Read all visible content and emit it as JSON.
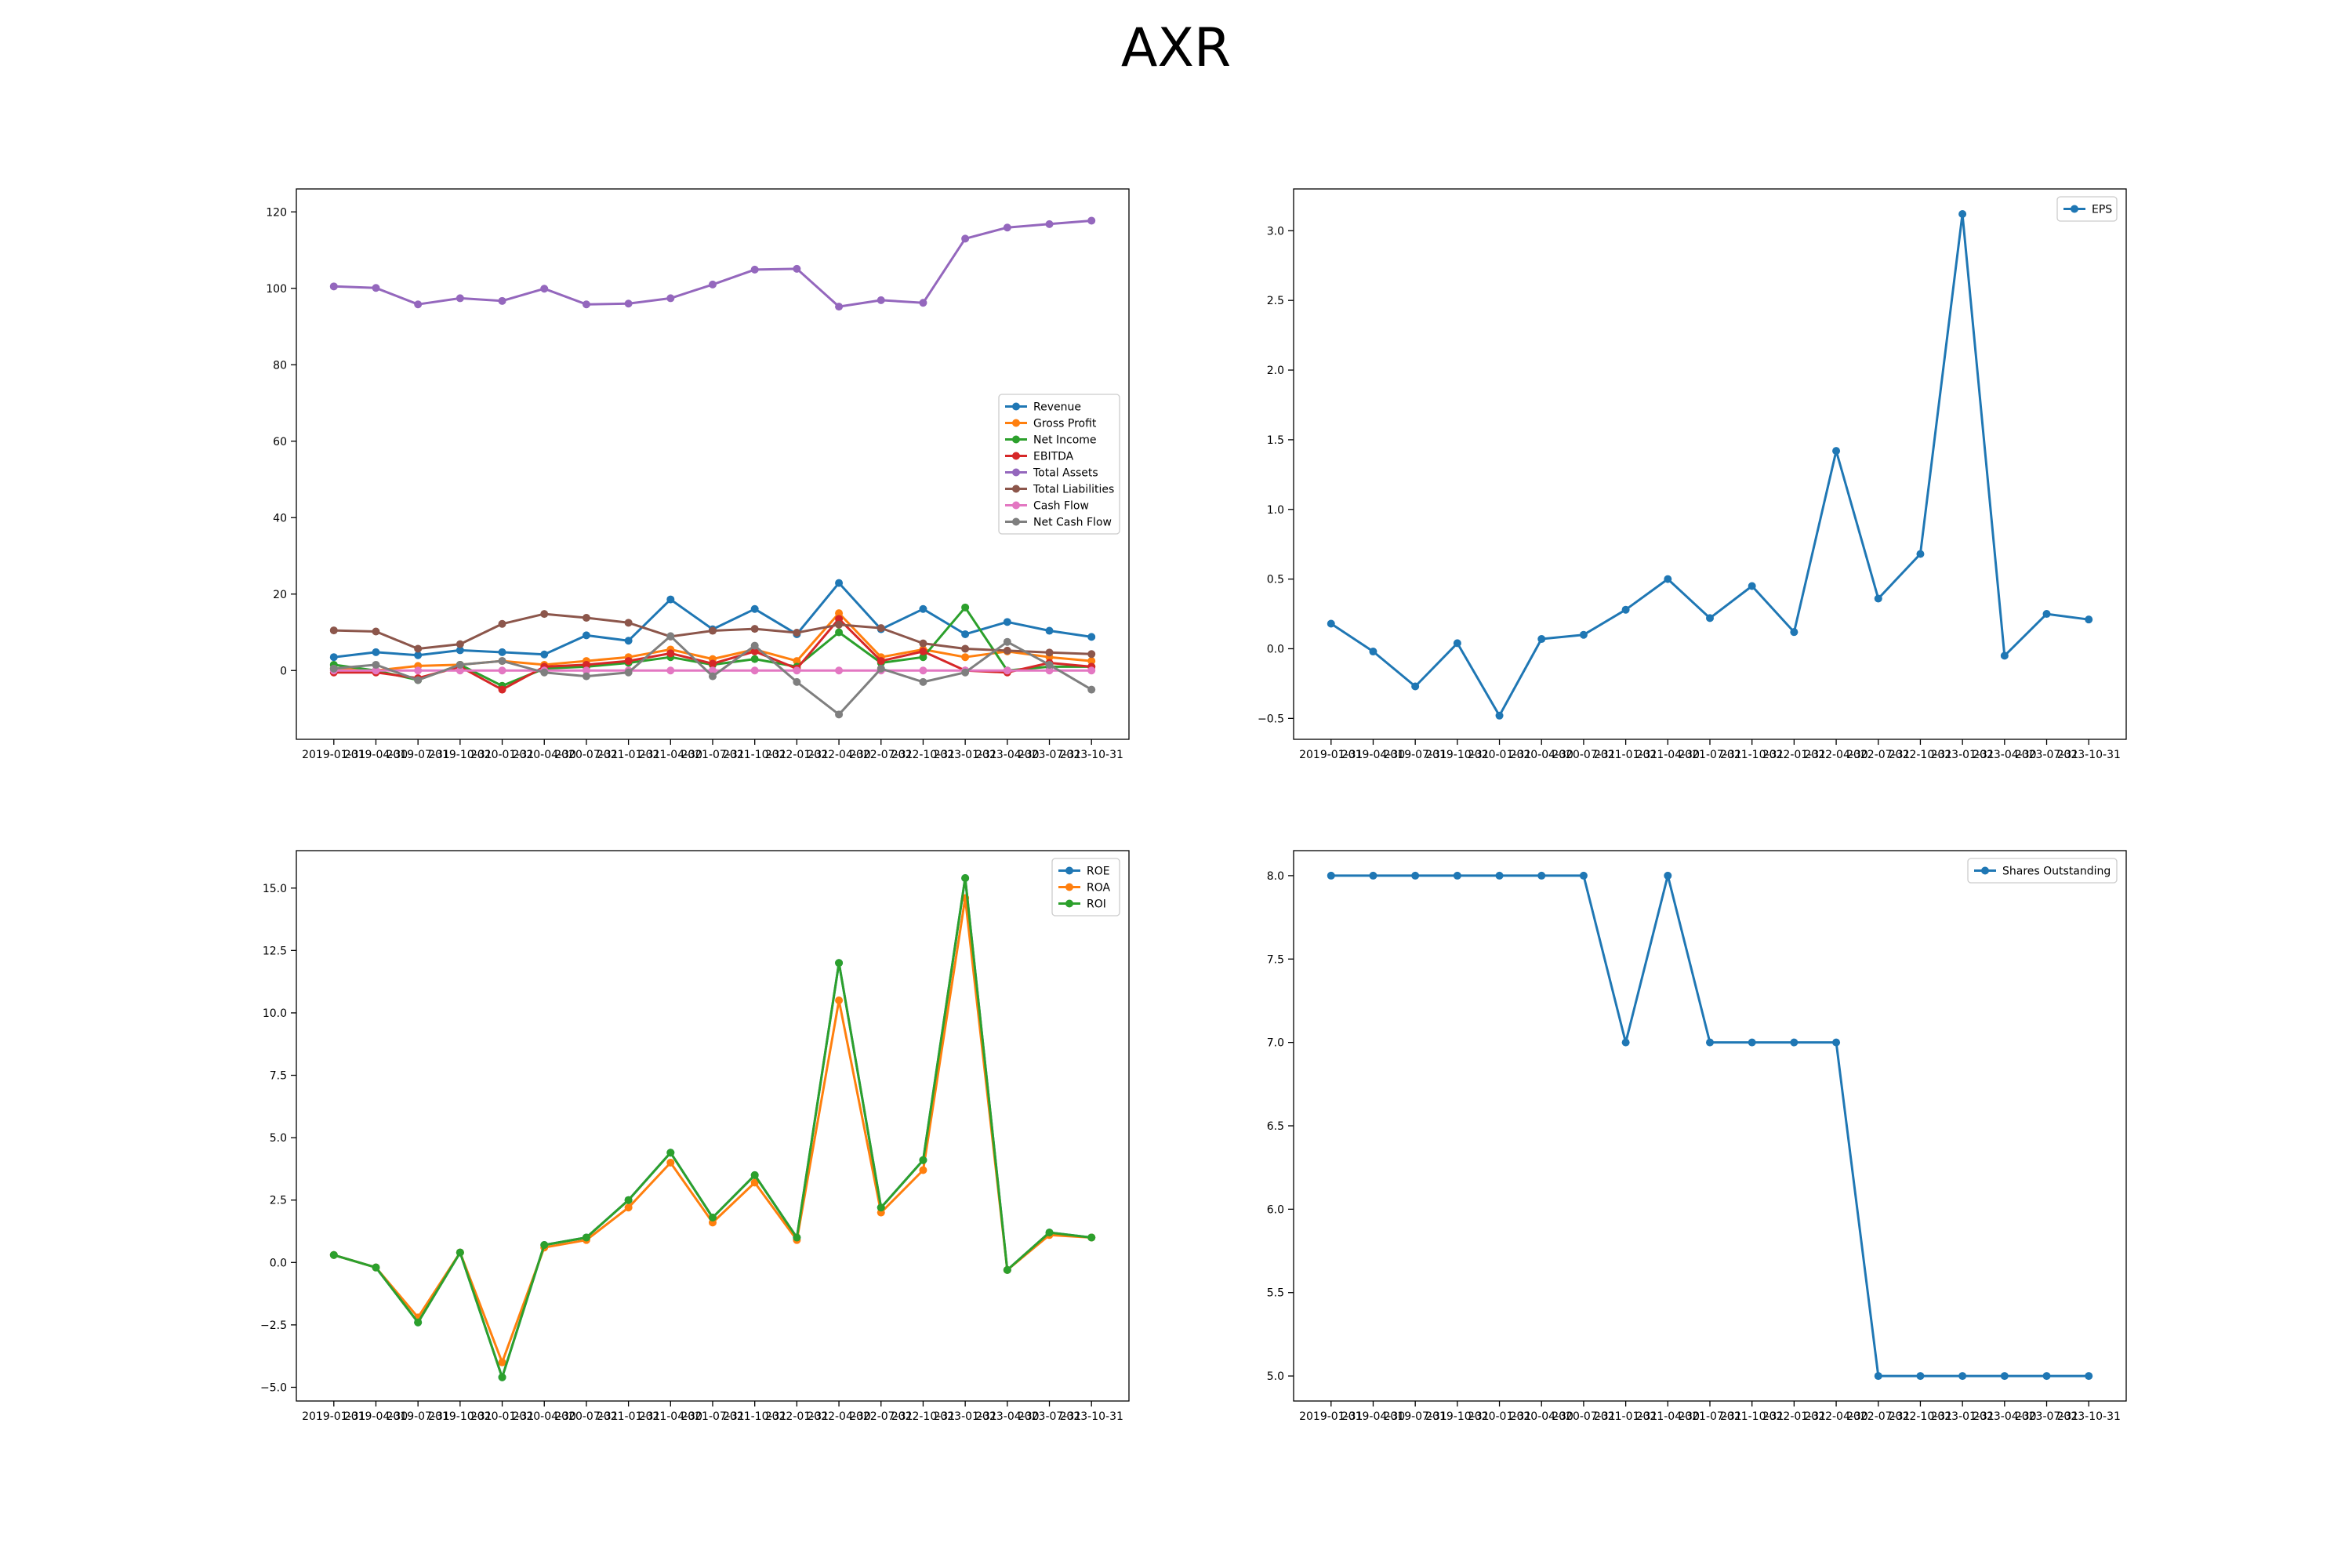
{
  "figure": {
    "title": "AXR"
  },
  "colors": {
    "Revenue": "#1f77b4",
    "Gross Profit": "#ff7f0e",
    "Net Income": "#2ca02c",
    "EBITDA": "#d62728",
    "Total Assets": "#9467bd",
    "Total Liabilities": "#8c564b",
    "Cash Flow": "#e377c2",
    "Net Cash Flow": "#7f7f7f",
    "EPS": "#1f77b4",
    "ROE": "#1f77b4",
    "ROA": "#ff7f0e",
    "ROI": "#2ca02c",
    "Shares Outstanding": "#1f77b4"
  },
  "chart_data": [
    {
      "type": "line",
      "title": "",
      "xlabel": "",
      "ylabel": "",
      "legend": "center-right",
      "categories": [
        "2019-01-31",
        "2019-04-30",
        "2019-07-31",
        "2019-10-31",
        "2020-01-31",
        "2020-04-30",
        "2020-07-31",
        "2021-01-31",
        "2021-04-30",
        "2021-07-31",
        "2021-10-31",
        "2022-01-31",
        "2022-04-30",
        "2022-07-31",
        "2022-10-31",
        "2023-01-31",
        "2023-04-30",
        "2023-07-31",
        "2023-10-31"
      ],
      "ylim": [
        -18,
        126
      ],
      "yticks": [
        0,
        20,
        40,
        60,
        80,
        100,
        120
      ],
      "series": [
        {
          "name": "Revenue",
          "values": [
            3.5,
            4.8,
            4.0,
            5.3,
            4.8,
            4.2,
            9.2,
            7.8,
            18.6,
            10.8,
            16.1,
            9.5,
            22.9,
            10.8,
            16.1,
            9.5,
            12.7,
            10.4,
            8.8
          ]
        },
        {
          "name": "Gross Profit",
          "values": [
            0.5,
            0.0,
            1.2,
            1.5,
            2.5,
            1.5,
            2.5,
            3.5,
            5.5,
            3.0,
            5.5,
            2.5,
            15.0,
            3.5,
            5.5,
            3.5,
            5.0,
            3.5,
            2.5
          ]
        },
        {
          "name": "Net Income",
          "values": [
            1.5,
            0.0,
            -2.5,
            1.5,
            -4.0,
            0.5,
            1.0,
            2.0,
            3.5,
            1.5,
            3.0,
            1.0,
            10.0,
            2.0,
            3.5,
            16.5,
            0.0,
            1.0,
            1.0
          ]
        },
        {
          "name": "EBITDA",
          "values": [
            -0.5,
            -0.5,
            -2.0,
            1.0,
            -5.0,
            1.0,
            1.5,
            2.5,
            4.5,
            1.8,
            5.0,
            0.5,
            13.5,
            2.5,
            5.0,
            0.0,
            -0.5,
            2.0,
            1.0
          ]
        },
        {
          "name": "Total Assets",
          "values": [
            100.5,
            100.1,
            95.8,
            97.4,
            96.7,
            99.9,
            95.8,
            96.0,
            97.4,
            101.0,
            104.9,
            105.1,
            95.2,
            96.9,
            96.2,
            113.0,
            115.9,
            116.8,
            117.7
          ]
        },
        {
          "name": "Total Liabilities",
          "values": [
            10.5,
            10.2,
            5.7,
            6.9,
            12.2,
            14.8,
            13.8,
            12.5,
            8.9,
            10.4,
            10.9,
            9.9,
            12.0,
            11.1,
            7.1,
            5.7,
            5.2,
            4.7,
            4.3
          ]
        },
        {
          "name": "Cash Flow",
          "values": [
            0.0,
            0.0,
            0.0,
            0.0,
            0.0,
            0.0,
            0.0,
            0.0,
            0.0,
            0.0,
            0.0,
            0.0,
            0.0,
            0.0,
            0.0,
            0.0,
            0.0,
            0.0,
            0.0
          ]
        },
        {
          "name": "Net Cash Flow",
          "values": [
            0.5,
            1.5,
            -2.5,
            1.5,
            2.5,
            -0.5,
            -1.5,
            -0.5,
            9.0,
            -1.5,
            6.5,
            -3.0,
            -11.5,
            0.5,
            -3.0,
            -0.5,
            7.5,
            1.5,
            -5.0
          ]
        }
      ]
    },
    {
      "type": "line",
      "title": "",
      "xlabel": "",
      "ylabel": "",
      "legend": "top-right",
      "categories": [
        "2019-01-31",
        "2019-04-30",
        "2019-07-31",
        "2019-10-31",
        "2020-01-31",
        "2020-04-30",
        "2020-07-31",
        "2021-01-31",
        "2021-04-30",
        "2021-07-31",
        "2021-10-31",
        "2022-01-31",
        "2022-04-30",
        "2022-07-31",
        "2022-10-31",
        "2023-01-31",
        "2023-04-30",
        "2023-07-31",
        "2023-10-31"
      ],
      "ylim": [
        -0.65,
        3.3
      ],
      "yticks": [
        -0.5,
        0.0,
        0.5,
        1.0,
        1.5,
        2.0,
        2.5,
        3.0
      ],
      "series": [
        {
          "name": "EPS",
          "values": [
            0.18,
            -0.02,
            -0.27,
            0.04,
            -0.48,
            0.07,
            0.1,
            0.28,
            0.5,
            0.22,
            0.45,
            0.12,
            1.42,
            0.36,
            0.68,
            3.12,
            -0.05,
            0.25,
            0.21
          ]
        }
      ]
    },
    {
      "type": "line",
      "title": "",
      "xlabel": "",
      "ylabel": "",
      "legend": "top-right",
      "categories": [
        "2019-01-31",
        "2019-04-30",
        "2019-07-31",
        "2019-10-31",
        "2020-01-31",
        "2020-04-30",
        "2020-07-31",
        "2021-01-31",
        "2021-04-30",
        "2021-07-31",
        "2021-10-31",
        "2022-01-31",
        "2022-04-30",
        "2022-07-31",
        "2022-10-31",
        "2023-01-31",
        "2023-04-30",
        "2023-07-31",
        "2023-10-31"
      ],
      "ylim": [
        -5.55,
        16.5
      ],
      "yticks": [
        -5.0,
        -2.5,
        0.0,
        2.5,
        5.0,
        7.5,
        10.0,
        12.5,
        15.0
      ],
      "series": [
        {
          "name": "ROE",
          "values": [
            0.3,
            -0.2,
            -2.4,
            0.4,
            -4.6,
            0.7,
            1.0,
            2.5,
            4.4,
            1.8,
            3.5,
            1.0,
            12.0,
            2.2,
            4.1,
            15.4,
            -0.3,
            1.2,
            1.0
          ]
        },
        {
          "name": "ROA",
          "values": [
            0.3,
            -0.2,
            -2.2,
            0.4,
            -4.0,
            0.6,
            0.9,
            2.2,
            4.0,
            1.6,
            3.2,
            0.9,
            10.5,
            2.0,
            3.7,
            14.6,
            -0.3,
            1.1,
            1.0
          ]
        },
        {
          "name": "ROI",
          "values": [
            0.3,
            -0.2,
            -2.4,
            0.4,
            -4.6,
            0.7,
            1.0,
            2.5,
            4.4,
            1.8,
            3.5,
            1.0,
            12.0,
            2.2,
            4.1,
            15.4,
            -0.3,
            1.2,
            1.0
          ]
        }
      ]
    },
    {
      "type": "line",
      "title": "",
      "xlabel": "",
      "ylabel": "",
      "legend": "top-right",
      "categories": [
        "2019-01-31",
        "2019-04-30",
        "2019-07-31",
        "2019-10-31",
        "2020-01-31",
        "2020-04-30",
        "2020-07-31",
        "2021-01-31",
        "2021-04-30",
        "2021-07-31",
        "2021-10-31",
        "2022-01-31",
        "2022-04-30",
        "2022-07-31",
        "2022-10-31",
        "2023-01-31",
        "2023-04-30",
        "2023-07-31",
        "2023-10-31"
      ],
      "ylim": [
        4.85,
        8.15
      ],
      "yticks": [
        5.0,
        5.5,
        6.0,
        6.5,
        7.0,
        7.5,
        8.0
      ],
      "series": [
        {
          "name": "Shares Outstanding",
          "values": [
            8,
            8,
            8,
            8,
            8,
            8,
            8,
            7,
            8,
            7,
            7,
            7,
            7,
            5,
            5,
            5,
            5,
            5,
            5
          ]
        }
      ]
    }
  ]
}
